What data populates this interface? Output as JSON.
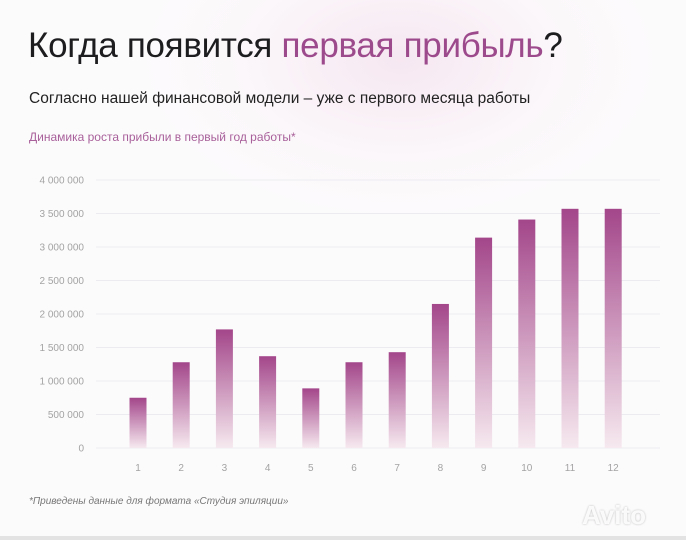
{
  "header": {
    "title_part1": "Когда появится ",
    "title_highlight": "первая прибыль",
    "title_part2": "?",
    "subtitle": "Согласно нашей финансовой модели – уже с первого месяца работы"
  },
  "footnote": "*Приведены данные для формата «Студия эпиляции»",
  "watermark": "Avito",
  "colors": {
    "accent": "#9d4a8c",
    "bar_top": "#a3468a",
    "bar_bottom": "#f6e9ef"
  },
  "chart_data": {
    "type": "bar",
    "title": "Динамика роста прибыли в первый год работы*",
    "categories": [
      "1",
      "2",
      "3",
      "4",
      "5",
      "6",
      "7",
      "8",
      "9",
      "10",
      "11",
      "12"
    ],
    "values": [
      750000,
      1280000,
      1770000,
      1370000,
      890000,
      1280000,
      1430000,
      2150000,
      3140000,
      3410000,
      3570000,
      3570000
    ],
    "ylim": [
      0,
      4000000
    ],
    "yticks": [
      0,
      500000,
      1000000,
      1500000,
      2000000,
      2500000,
      3000000,
      3500000,
      4000000
    ],
    "ytick_labels": [
      "0",
      "500 000",
      "1 000 000",
      "1 500 000",
      "2 000 000",
      "2 500 000",
      "3 000 000",
      "3 500 000",
      "4 000 000"
    ],
    "grid": true,
    "xlabel": "",
    "ylabel": ""
  }
}
